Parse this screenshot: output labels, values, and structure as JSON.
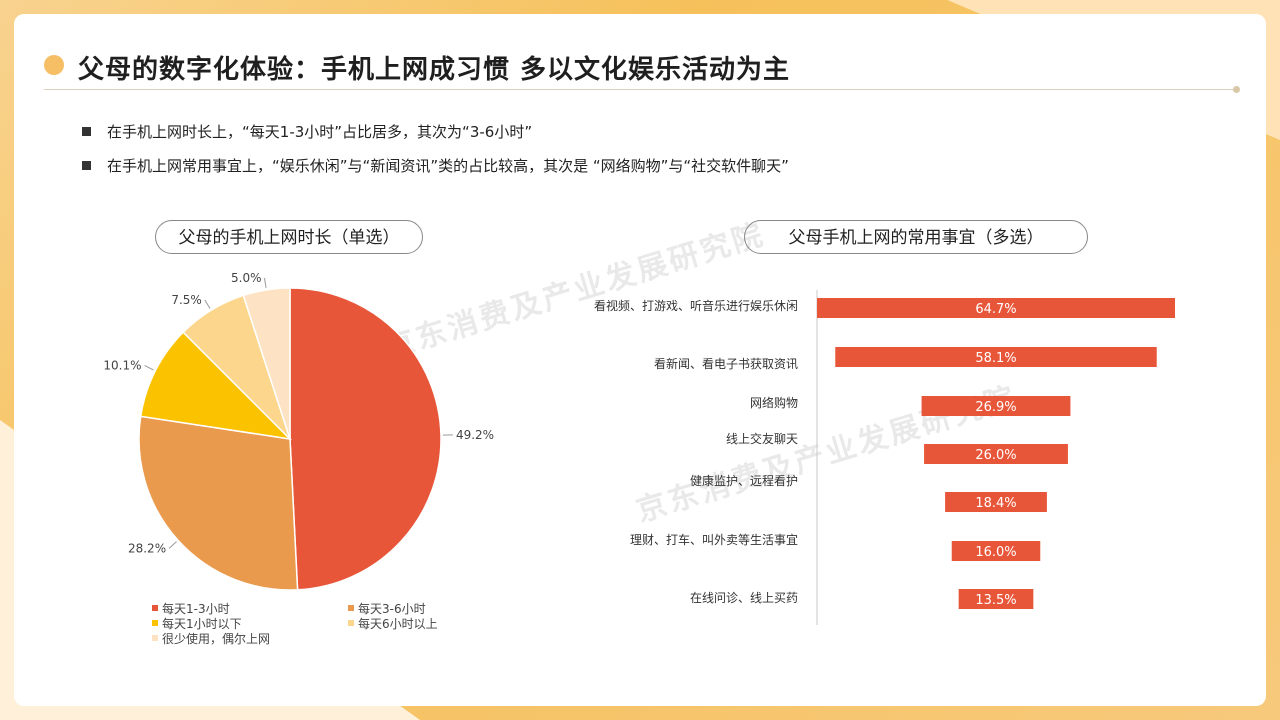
{
  "title": "父母的数字化体验：手机上网成习惯 多以文化娱乐活动为主",
  "bullets": [
    "在手机上网时长上，“每天1-3小时”占比居多，其次为“3-6小时”",
    "在手机上网常用事宜上，“娱乐休闲”与“新闻资讯”类的占比较高，其次是 “网络购物”与“社交软件聊天”"
  ],
  "watermark": "京东消费及产业发展研究院",
  "colors": {
    "accent": "#f6be65",
    "red": "#e8563a",
    "orange": "#ea9a4c",
    "yellow": "#fbc200",
    "light1": "#fcd68c",
    "light2": "#fde3c3"
  },
  "chart_data": [
    {
      "type": "pie",
      "title": "父母的手机上网时长（单选）",
      "categories": [
        "每天1-3小时",
        "每天3-6小时",
        "每天1小时以下",
        "每天6小时以上",
        "很少使用，偶尔上网"
      ],
      "values": [
        49.2,
        28.2,
        10.1,
        7.5,
        5.0
      ],
      "labels": [
        "49.2%",
        "28.2%",
        "10.1%",
        "7.5%",
        "5.0%"
      ],
      "colors": [
        "#e8563a",
        "#ea9a4c",
        "#fbc200",
        "#fcd68c",
        "#fde3c3"
      ],
      "legend": "bottom"
    },
    {
      "type": "bar",
      "orientation": "horizontal-centered",
      "title": "父母手机上网的常用事宜（多选）",
      "categories": [
        "看视频、打游戏、听音乐进行娱乐休闲",
        "看新闻、看电子书获取资讯",
        "网络购物",
        "线上交友聊天",
        "健康监护、远程看护",
        "理财、打车、叫外卖等生活事宜",
        "在线问诊、线上买药"
      ],
      "values": [
        64.7,
        58.1,
        26.9,
        26.0,
        18.4,
        16.0,
        13.5
      ],
      "labels": [
        "64.7%",
        "58.1%",
        "26.9%",
        "26.0%",
        "18.4%",
        "16.0%",
        "13.5%"
      ],
      "color": "#e8563a"
    }
  ]
}
